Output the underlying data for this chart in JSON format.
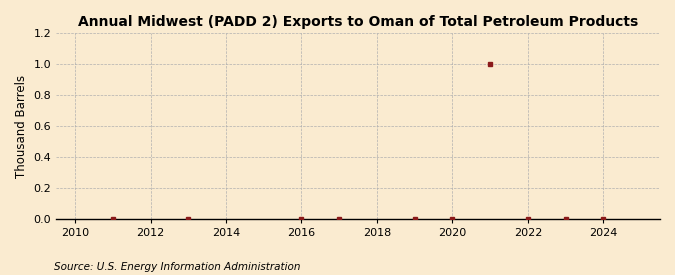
{
  "title": "Annual Midwest (PADD 2) Exports to Oman of Total Petroleum Products",
  "ylabel": "Thousand Barrels",
  "source": "Source: U.S. Energy Information Administration",
  "xlim": [
    2009.5,
    2025.5
  ],
  "ylim": [
    0.0,
    1.2
  ],
  "yticks": [
    0.0,
    0.2,
    0.4,
    0.6,
    0.8,
    1.0,
    1.2
  ],
  "xticks": [
    2010,
    2012,
    2014,
    2016,
    2018,
    2020,
    2022,
    2024
  ],
  "background_color": "#faebd0",
  "plot_bg_color": "#faebd0",
  "marker_color": "#8b1a1a",
  "data_points": {
    "years": [
      2011,
      2013,
      2016,
      2017,
      2019,
      2020,
      2021,
      2022,
      2023,
      2024
    ],
    "values": [
      0.0,
      0.0,
      0.0,
      0.0,
      0.0,
      0.0,
      1.0,
      0.0,
      0.0,
      0.0
    ]
  },
  "title_fontsize": 10,
  "label_fontsize": 8.5,
  "tick_fontsize": 8,
  "source_fontsize": 7.5
}
